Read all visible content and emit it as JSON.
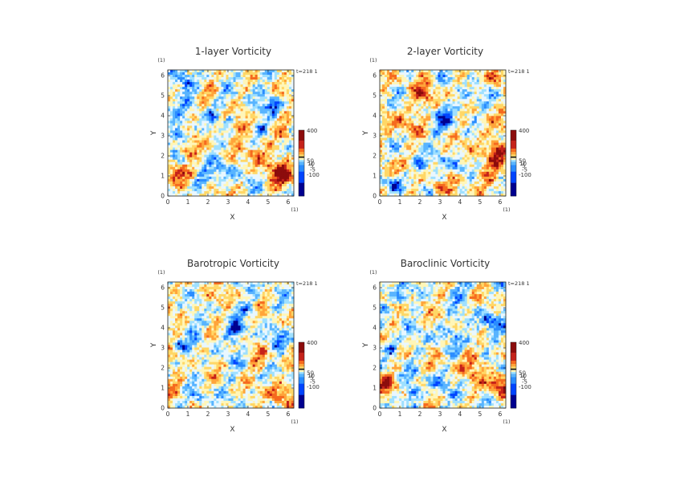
{
  "colors": {
    "scale": [
      "#00008f",
      "#0044ff",
      "#2a8cff",
      "#58b4ff",
      "#9fe0ff",
      "#e9f7ff",
      "#fff6b8",
      "#ffd766",
      "#ffa43a",
      "#f56a1f",
      "#c5221a",
      "#8c0c0c"
    ],
    "frame": "#222222"
  },
  "chart_data": [
    {
      "type": "heatmap",
      "title": "1-layer Vorticity",
      "xlabel": "X",
      "ylabel": "Y",
      "x_unit": "(1)",
      "y_unit": "(1)",
      "time_label": "t=218 1",
      "xlim": [
        0,
        6.283
      ],
      "ylim": [
        0,
        6.283
      ],
      "x_ticks": [
        "0",
        "1",
        "2",
        "3",
        "4",
        "5",
        "6"
      ],
      "y_ticks": [
        "0",
        "1",
        "2",
        "3",
        "4",
        "5",
        "6"
      ],
      "colorbar_ticks": [
        "400",
        "50",
        "10",
        "5",
        "-5",
        "-100"
      ],
      "features": [
        {
          "x": 5.8,
          "y": 1.1,
          "r": 0.45,
          "v": 1.0
        },
        {
          "x": 0.3,
          "y": 1.1,
          "r": 0.35,
          "v": 0.8
        },
        {
          "x": 4.5,
          "y": 2.2,
          "r": 0.45,
          "v": 0.6
        },
        {
          "x": 3.3,
          "y": 3.4,
          "r": 0.4,
          "v": 0.5
        },
        {
          "x": 2.2,
          "y": 5.3,
          "r": 0.35,
          "v": 0.45
        },
        {
          "x": 5.6,
          "y": 4.1,
          "r": 0.35,
          "v": 0.3
        },
        {
          "x": 1.0,
          "y": 2.2,
          "r": 0.3,
          "v": 0.5
        },
        {
          "x": 3.1,
          "y": 3.8,
          "r": 0.18,
          "v": -1.0
        },
        {
          "x": 5.3,
          "y": 4.4,
          "r": 0.3,
          "v": -0.85
        },
        {
          "x": 0.6,
          "y": 3.1,
          "r": 0.25,
          "v": -0.9
        },
        {
          "x": 4.7,
          "y": 3.4,
          "r": 0.2,
          "v": -0.8
        },
        {
          "x": 2.2,
          "y": 4.1,
          "r": 0.18,
          "v": -0.6
        },
        {
          "x": 1.6,
          "y": 0.7,
          "r": 0.2,
          "v": -0.85
        },
        {
          "x": 3.7,
          "y": 5.8,
          "r": 0.25,
          "v": -0.5
        },
        {
          "x": 1.3,
          "y": 4.8,
          "r": 0.4,
          "v": -0.45
        },
        {
          "x": 0.8,
          "y": 5.6,
          "r": 0.35,
          "v": -0.5
        },
        {
          "x": 2.9,
          "y": 1.4,
          "r": 0.4,
          "v": -0.4
        }
      ]
    },
    {
      "type": "heatmap",
      "title": "2-layer Vorticity",
      "xlabel": "X",
      "ylabel": "Y",
      "x_unit": "(1)",
      "y_unit": "(1)",
      "time_label": "t=218 1",
      "xlim": [
        0,
        6.283
      ],
      "ylim": [
        0,
        6.283
      ],
      "x_ticks": [
        "0",
        "1",
        "2",
        "3",
        "4",
        "5",
        "6"
      ],
      "y_ticks": [
        "0",
        "1",
        "2",
        "3",
        "4",
        "5",
        "6"
      ],
      "colorbar_ticks": [
        "400",
        "50",
        "10",
        "5",
        "-5",
        "-100"
      ],
      "features": [
        {
          "x": 3.3,
          "y": 3.8,
          "r": 0.45,
          "v": -0.55
        },
        {
          "x": 2.2,
          "y": 5.0,
          "r": 0.5,
          "v": 0.45
        },
        {
          "x": 1.0,
          "y": 3.6,
          "r": 0.5,
          "v": 0.45
        },
        {
          "x": 5.3,
          "y": 3.0,
          "r": 0.55,
          "v": 0.35
        },
        {
          "x": 5.2,
          "y": 1.1,
          "r": 0.55,
          "v": 0.5
        },
        {
          "x": 5.9,
          "y": 2.2,
          "r": 0.3,
          "v": 0.8
        },
        {
          "x": 0.5,
          "y": 1.3,
          "r": 0.35,
          "v": 0.5
        },
        {
          "x": 2.0,
          "y": 1.5,
          "r": 0.25,
          "v": -0.7
        },
        {
          "x": 3.9,
          "y": 1.6,
          "r": 0.3,
          "v": -0.55
        },
        {
          "x": 4.3,
          "y": 4.6,
          "r": 0.35,
          "v": -0.4
        },
        {
          "x": 0.7,
          "y": 0.6,
          "r": 0.25,
          "v": -0.6
        },
        {
          "x": 5.6,
          "y": 5.9,
          "r": 0.3,
          "v": 0.6
        },
        {
          "x": 2.9,
          "y": 0.4,
          "r": 0.25,
          "v": 0.6
        }
      ]
    },
    {
      "type": "heatmap",
      "title": "Barotropic Vorticity",
      "xlabel": "X",
      "ylabel": "Y",
      "x_unit": "(1)",
      "y_unit": "(1)",
      "time_label": "t=218 1",
      "xlim": [
        0,
        6.283
      ],
      "ylim": [
        0,
        6.283
      ],
      "x_ticks": [
        "0",
        "1",
        "2",
        "3",
        "4",
        "5",
        "6"
      ],
      "y_ticks": [
        "0",
        "1",
        "2",
        "3",
        "4",
        "5",
        "6"
      ],
      "colorbar_ticks": [
        "400",
        "50",
        "10",
        "5",
        "-5",
        "-100"
      ],
      "features": [
        {
          "x": 3.4,
          "y": 3.9,
          "r": 0.2,
          "v": -0.8
        },
        {
          "x": 3.3,
          "y": 3.7,
          "r": 0.55,
          "v": -0.3
        },
        {
          "x": 5.5,
          "y": 0.9,
          "r": 0.4,
          "v": 0.6
        },
        {
          "x": 0.4,
          "y": 1.2,
          "r": 0.35,
          "v": 0.45
        },
        {
          "x": 4.6,
          "y": 2.3,
          "r": 0.35,
          "v": 0.35
        },
        {
          "x": 0.6,
          "y": 3.1,
          "r": 0.2,
          "v": -0.7
        },
        {
          "x": 5.4,
          "y": 3.3,
          "r": 0.3,
          "v": -0.5
        },
        {
          "x": 2.1,
          "y": 5.3,
          "r": 0.35,
          "v": 0.3
        },
        {
          "x": 1.6,
          "y": 0.5,
          "r": 0.25,
          "v": -0.6
        },
        {
          "x": 4.1,
          "y": 5.1,
          "r": 0.3,
          "v": -0.4
        },
        {
          "x": 1.2,
          "y": 4.2,
          "r": 0.35,
          "v": -0.35
        }
      ]
    },
    {
      "type": "heatmap",
      "title": "Baroclinic Vorticity",
      "xlabel": "X",
      "ylabel": "Y",
      "x_unit": "(1)",
      "y_unit": "(1)",
      "time_label": "t=218 1",
      "xlim": [
        0,
        6.283
      ],
      "ylim": [
        0,
        6.283
      ],
      "x_ticks": [
        "0",
        "1",
        "2",
        "3",
        "4",
        "5",
        "6"
      ],
      "y_ticks": [
        "0",
        "1",
        "2",
        "3",
        "4",
        "5",
        "6"
      ],
      "colorbar_ticks": [
        "400",
        "50",
        "10",
        "5",
        "-5",
        "-100"
      ],
      "features": [
        {
          "x": 5.9,
          "y": 1.2,
          "r": 0.4,
          "v": 0.95
        },
        {
          "x": 0.3,
          "y": 1.1,
          "r": 0.3,
          "v": 0.6
        },
        {
          "x": 4.5,
          "y": 2.2,
          "r": 0.45,
          "v": 0.5
        },
        {
          "x": 2.2,
          "y": 5.3,
          "r": 0.35,
          "v": 0.4
        },
        {
          "x": 5.4,
          "y": 4.3,
          "r": 0.35,
          "v": -0.8
        },
        {
          "x": 0.6,
          "y": 3.0,
          "r": 0.25,
          "v": -0.85
        },
        {
          "x": 3.3,
          "y": 3.8,
          "r": 0.4,
          "v": -0.45
        },
        {
          "x": 1.7,
          "y": 0.7,
          "r": 0.25,
          "v": -0.8
        },
        {
          "x": 1.1,
          "y": 5.5,
          "r": 0.4,
          "v": -0.55
        },
        {
          "x": 2.9,
          "y": 1.3,
          "r": 0.4,
          "v": -0.4
        },
        {
          "x": 4.7,
          "y": 3.4,
          "r": 0.25,
          "v": -0.6
        },
        {
          "x": 3.8,
          "y": 5.9,
          "r": 0.3,
          "v": -0.5
        }
      ]
    }
  ]
}
